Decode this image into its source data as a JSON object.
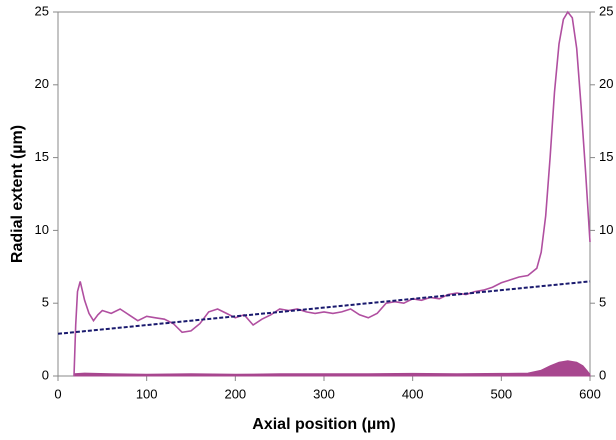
{
  "chart_data": {
    "type": "line",
    "x_label": "Axial position (µm)",
    "y_label": "Radial extent (µm)",
    "xlim": [
      0,
      600
    ],
    "xticks": [
      0,
      100,
      200,
      300,
      400,
      500,
      600
    ],
    "ylim": [
      0,
      25
    ],
    "yticks": [
      0,
      5,
      10,
      15,
      20,
      25
    ],
    "y2lim": [
      0,
      25
    ],
    "y2ticks": [
      0,
      5,
      10,
      15,
      20,
      25
    ],
    "grid": false,
    "series": [
      {
        "kind": "area",
        "color": "#a8478f",
        "x": [
          18,
          30,
          60,
          100,
          150,
          200,
          250,
          300,
          350,
          400,
          450,
          500,
          530,
          545,
          555,
          565,
          575,
          585,
          592,
          597,
          600
        ],
        "values": [
          0.15,
          0.2,
          0.15,
          0.12,
          0.15,
          0.12,
          0.15,
          0.15,
          0.15,
          0.18,
          0.15,
          0.18,
          0.2,
          0.4,
          0.7,
          0.95,
          1.05,
          0.95,
          0.7,
          0.35,
          0.1
        ]
      },
      {
        "kind": "line",
        "color": "#b04fa0",
        "x": [
          18,
          20,
          22,
          25,
          30,
          35,
          40,
          45,
          50,
          60,
          70,
          80,
          90,
          100,
          110,
          120,
          130,
          140,
          150,
          160,
          170,
          180,
          190,
          200,
          210,
          220,
          230,
          240,
          250,
          260,
          270,
          280,
          290,
          300,
          310,
          320,
          330,
          340,
          350,
          360,
          370,
          380,
          390,
          400,
          410,
          420,
          430,
          440,
          450,
          460,
          470,
          480,
          490,
          500,
          510,
          520,
          530,
          540,
          545,
          550,
          555,
          560,
          565,
          570,
          575,
          580,
          585,
          590,
          595,
          600
        ],
        "values": [
          0,
          3.5,
          5.8,
          6.5,
          5.2,
          4.3,
          3.8,
          4.2,
          4.5,
          4.3,
          4.6,
          4.2,
          3.8,
          4.1,
          4.0,
          3.9,
          3.6,
          3.0,
          3.1,
          3.6,
          4.4,
          4.6,
          4.3,
          4.0,
          4.2,
          3.5,
          3.9,
          4.2,
          4.6,
          4.5,
          4.6,
          4.4,
          4.3,
          4.4,
          4.3,
          4.4,
          4.6,
          4.2,
          4.0,
          4.3,
          5.0,
          5.1,
          5.0,
          5.3,
          5.2,
          5.4,
          5.3,
          5.6,
          5.7,
          5.6,
          5.8,
          5.9,
          6.1,
          6.4,
          6.6,
          6.8,
          6.9,
          7.4,
          8.5,
          11.0,
          15.0,
          19.5,
          22.8,
          24.5,
          25.0,
          24.6,
          22.5,
          18.5,
          14.0,
          9.2
        ]
      },
      {
        "kind": "line",
        "dash": true,
        "color": "#1a1a6e",
        "x": [
          0,
          600
        ],
        "values": [
          2.9,
          6.5
        ]
      }
    ]
  }
}
